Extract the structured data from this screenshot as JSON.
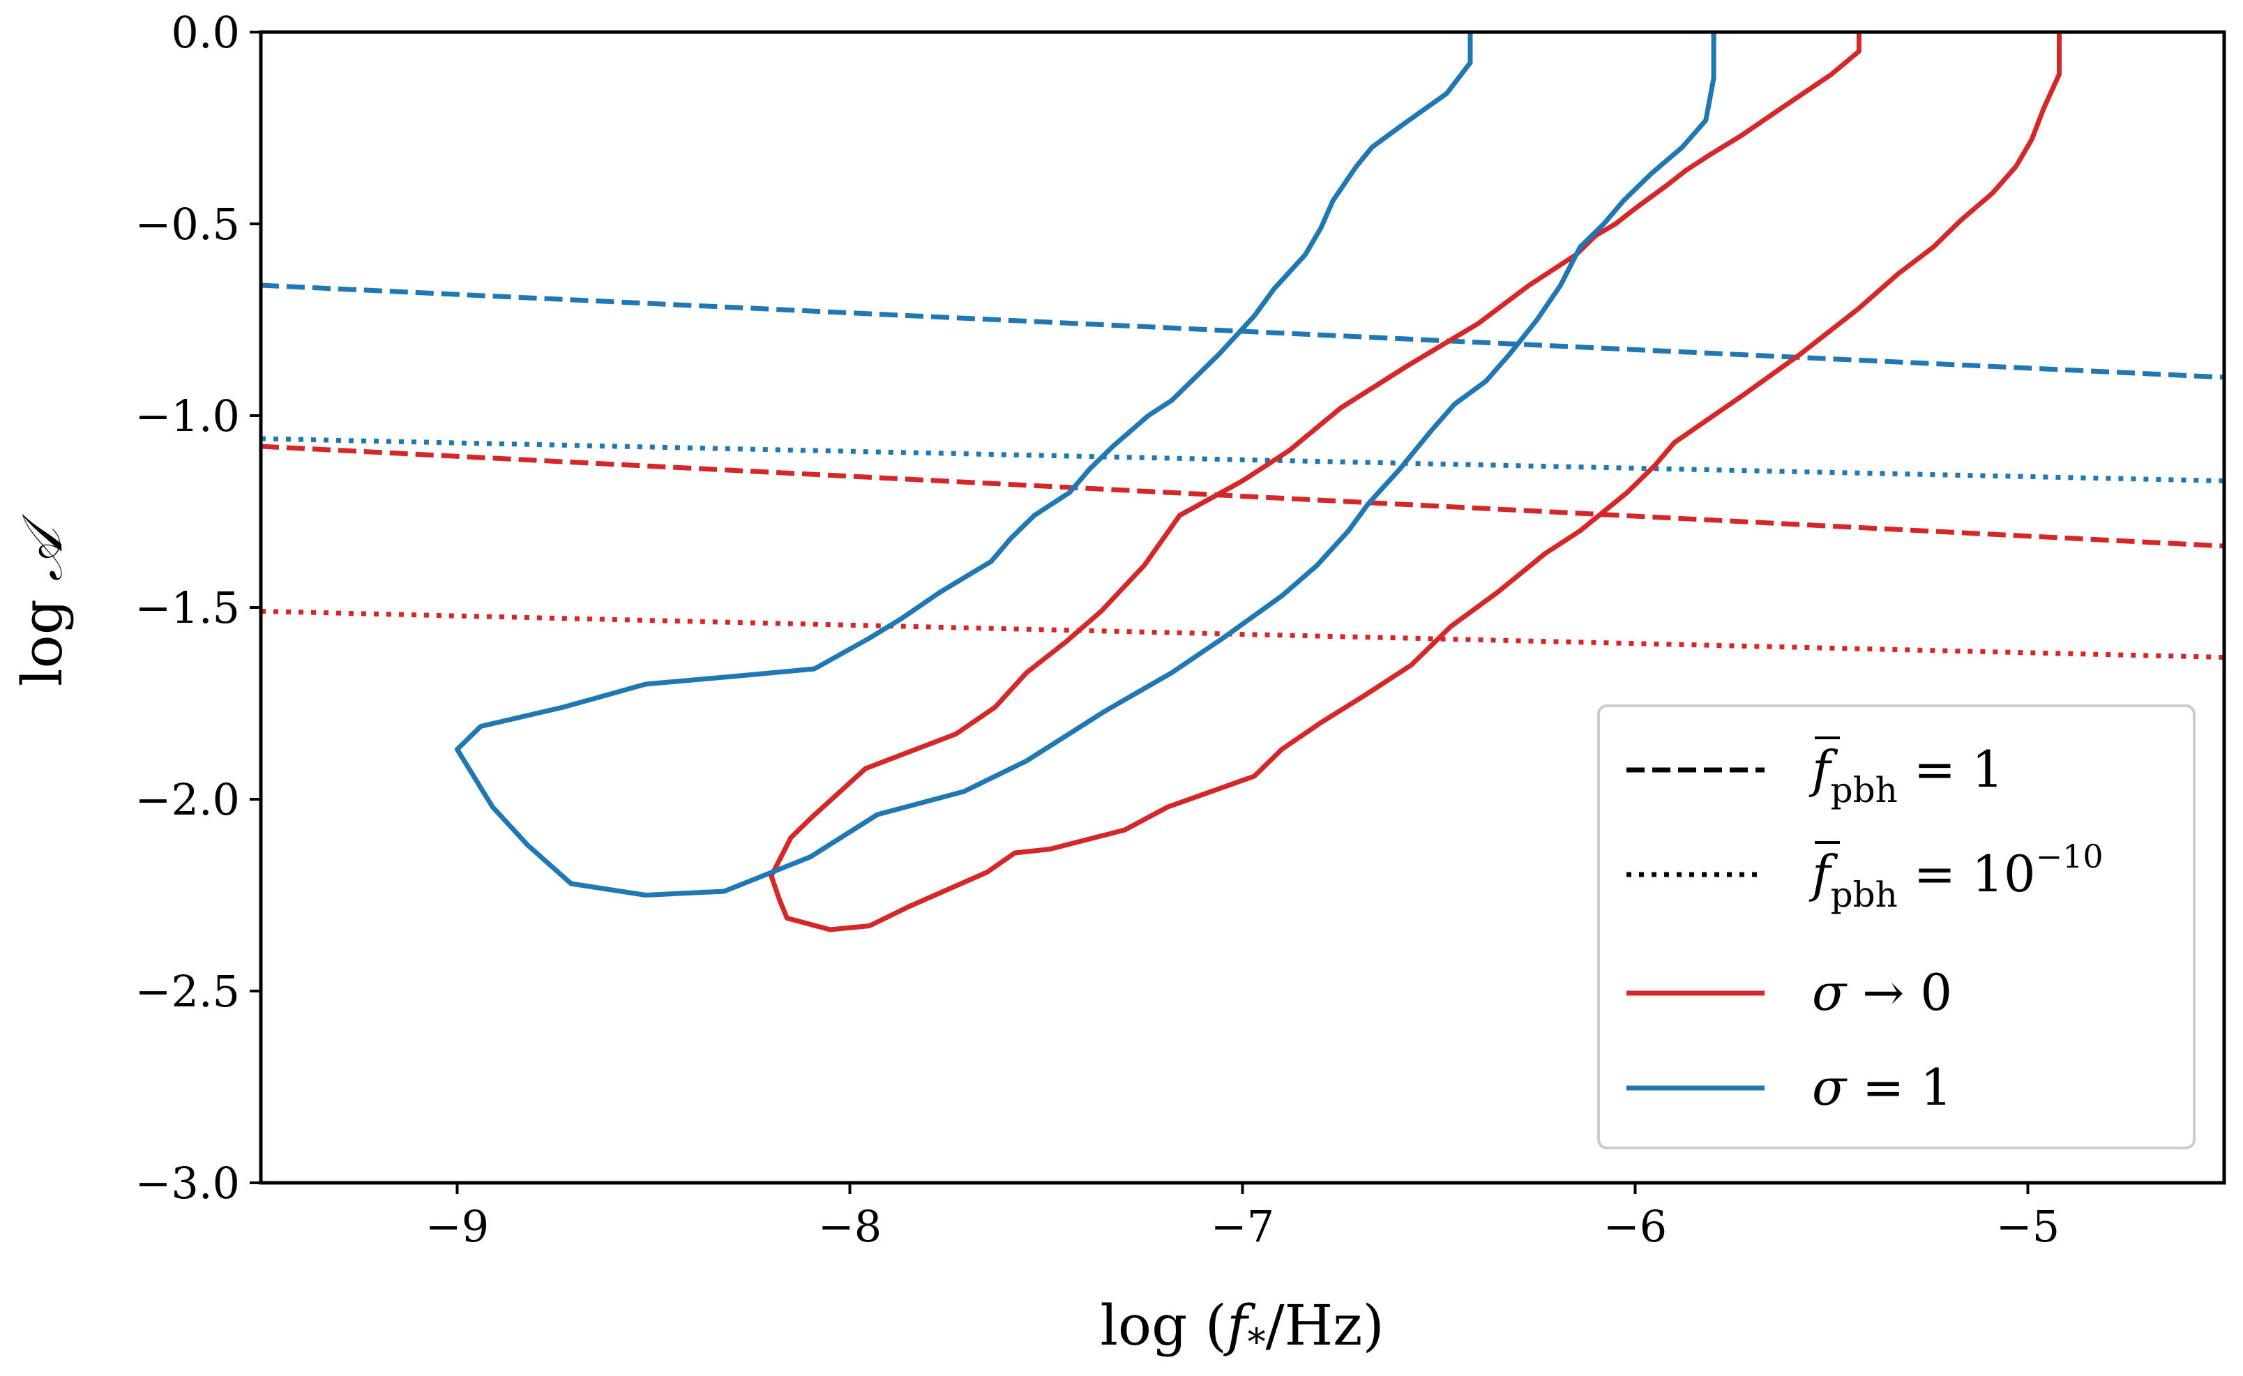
{
  "chart_data": {
    "type": "line",
    "xlabel_prefix": "log",
    "xlabel_var": "f",
    "xlabel_sub": "*",
    "xlabel_unit": "/Hz",
    "ylabel_prefix": "log",
    "ylabel_var": "𝒜",
    "xlim": [
      -9.5,
      -4.5
    ],
    "ylim": [
      -3.0,
      0.0
    ],
    "xticks": [
      -9,
      -8,
      -7,
      -6,
      -5
    ],
    "xtick_labels": [
      "−9",
      "−8",
      "−7",
      "−6",
      "−5"
    ],
    "yticks": [
      0.0,
      -0.5,
      -1.0,
      -1.5,
      -2.0,
      -2.5,
      -3.0
    ],
    "ytick_labels": [
      "0.0",
      "−0.5",
      "−1.0",
      "−1.5",
      "−2.0",
      "−2.5",
      "−3.0"
    ],
    "colors": {
      "red": "#d62728",
      "blue": "#1f77b4",
      "black": "#000000"
    },
    "series": [
      {
        "name": "red-dashed",
        "color": "#d62728",
        "style": "dashed",
        "x": [
          -9.5,
          -4.5
        ],
        "y": [
          -1.08,
          -1.34
        ]
      },
      {
        "name": "red-dotted",
        "color": "#d62728",
        "style": "dotted",
        "x": [
          -9.5,
          -4.5
        ],
        "y": [
          -1.51,
          -1.63
        ]
      },
      {
        "name": "blue-dashed",
        "color": "#1f77b4",
        "style": "dashed",
        "x": [
          -9.5,
          -4.5
        ],
        "y": [
          -0.66,
          -0.9
        ]
      },
      {
        "name": "blue-dotted",
        "color": "#1f77b4",
        "style": "dotted",
        "x": [
          -9.5,
          -4.5
        ],
        "y": [
          -1.06,
          -1.17
        ]
      },
      {
        "name": "red-contour",
        "color": "#d62728",
        "style": "solid",
        "x": [
          -5.43,
          -5.43,
          -5.5,
          -5.63,
          -5.73,
          -5.81,
          -5.87,
          -5.92,
          -5.96,
          -6.0,
          -6.05,
          -6.1,
          -6.15,
          -6.21,
          -6.27,
          -6.4,
          -6.58,
          -6.75,
          -6.88,
          -7.0,
          -7.16,
          -7.25,
          -7.36,
          -7.45,
          -7.55,
          -7.63,
          -7.73,
          -7.96,
          -8.1,
          -8.15,
          -8.2,
          -8.18,
          -8.16,
          -8.05,
          -7.95,
          -7.85,
          -7.65,
          -7.58,
          -7.49,
          -7.3,
          -7.19,
          -6.97,
          -6.9,
          -6.8,
          -6.69,
          -6.57,
          -6.47,
          -6.35,
          -6.23,
          -6.14,
          -6.02,
          -5.95,
          -5.9,
          -5.73,
          -5.58,
          -5.43,
          -5.33,
          -5.24,
          -5.17,
          -5.09,
          -5.03,
          -4.99,
          -4.96,
          -4.92,
          -4.92
        ],
        "y": [
          0.0,
          -0.05,
          -0.11,
          -0.2,
          -0.27,
          -0.32,
          -0.36,
          -0.4,
          -0.43,
          -0.46,
          -0.5,
          -0.53,
          -0.58,
          -0.62,
          -0.66,
          -0.76,
          -0.87,
          -0.98,
          -1.09,
          -1.17,
          -1.26,
          -1.39,
          -1.51,
          -1.59,
          -1.67,
          -1.76,
          -1.83,
          -1.92,
          -2.05,
          -2.1,
          -2.2,
          -2.26,
          -2.31,
          -2.34,
          -2.33,
          -2.28,
          -2.19,
          -2.14,
          -2.13,
          -2.08,
          -2.02,
          -1.94,
          -1.87,
          -1.8,
          -1.73,
          -1.65,
          -1.55,
          -1.46,
          -1.36,
          -1.3,
          -1.2,
          -1.13,
          -1.07,
          -0.95,
          -0.84,
          -0.72,
          -0.63,
          -0.56,
          -0.49,
          -0.42,
          -0.35,
          -0.28,
          -0.2,
          -0.11,
          0.0
        ]
      },
      {
        "name": "blue-contour",
        "color": "#1f77b4",
        "style": "solid",
        "x": [
          -6.42,
          -6.42,
          -6.48,
          -6.59,
          -6.67,
          -6.71,
          -6.73,
          -6.77,
          -6.8,
          -6.84,
          -6.92,
          -6.97,
          -7.06,
          -7.18,
          -7.24,
          -7.33,
          -7.39,
          -7.44,
          -7.53,
          -7.59,
          -7.64,
          -7.77,
          -7.87,
          -7.95,
          -8.09,
          -8.3,
          -8.52,
          -8.73,
          -8.94,
          -9.0,
          -8.91,
          -8.82,
          -8.71,
          -8.52,
          -8.32,
          -8.1,
          -7.93,
          -7.71,
          -7.55,
          -7.35,
          -7.18,
          -7.05,
          -6.9,
          -6.81,
          -6.73,
          -6.68,
          -6.6,
          -6.52,
          -6.46,
          -6.38,
          -6.32,
          -6.25,
          -6.19,
          -6.14,
          -6.08,
          -6.03,
          -5.96,
          -5.88,
          -5.82,
          -5.8,
          -5.8
        ],
        "y": [
          0.0,
          -0.08,
          -0.16,
          -0.24,
          -0.3,
          -0.35,
          -0.38,
          -0.44,
          -0.51,
          -0.58,
          -0.67,
          -0.74,
          -0.84,
          -0.96,
          -1.0,
          -1.08,
          -1.14,
          -1.2,
          -1.26,
          -1.32,
          -1.38,
          -1.46,
          -1.53,
          -1.58,
          -1.66,
          -1.68,
          -1.7,
          -1.76,
          -1.81,
          -1.87,
          -2.02,
          -2.12,
          -2.22,
          -2.25,
          -2.24,
          -2.15,
          -2.04,
          -1.98,
          -1.9,
          -1.77,
          -1.67,
          -1.58,
          -1.47,
          -1.39,
          -1.3,
          -1.23,
          -1.14,
          -1.04,
          -0.97,
          -0.91,
          -0.84,
          -0.75,
          -0.66,
          -0.56,
          -0.5,
          -0.44,
          -0.37,
          -0.3,
          -0.23,
          -0.12,
          0.0
        ]
      }
    ],
    "legend": {
      "position": "lower right",
      "entries": [
        {
          "label_base": "f",
          "label_sub": "pbh",
          "label_rel": " = ",
          "label_value": "1",
          "label_sup": "",
          "style": "dashed",
          "color": "#000000"
        },
        {
          "label_base": "f",
          "label_sub": "pbh",
          "label_rel": " = ",
          "label_value": "10",
          "label_sup": "−10",
          "style": "dotted",
          "color": "#000000"
        },
        {
          "label_base": "σ",
          "label_sub": "",
          "label_rel": " → ",
          "label_value": "0",
          "label_sup": "",
          "style": "solid",
          "color": "#d62728"
        },
        {
          "label_base": "σ",
          "label_sub": "",
          "label_rel": " = ",
          "label_value": "1",
          "label_sup": "",
          "style": "solid",
          "color": "#1f77b4"
        }
      ]
    }
  }
}
